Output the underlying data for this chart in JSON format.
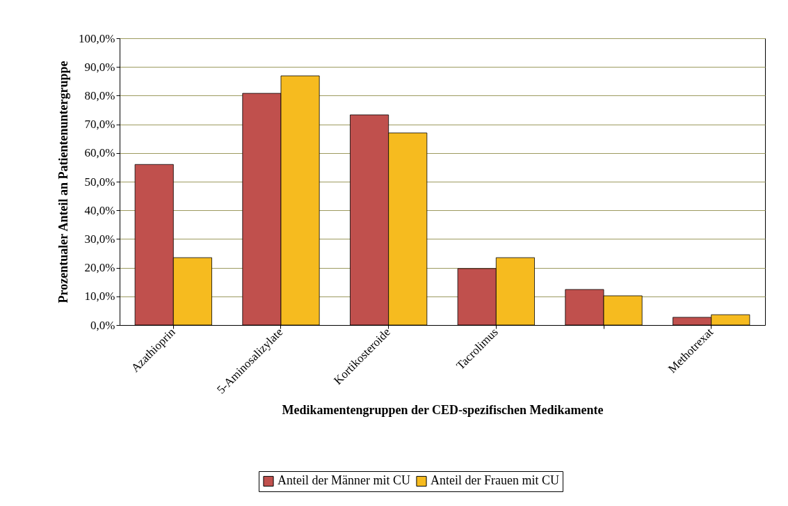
{
  "chart_data": {
    "type": "bar",
    "xlabel": "Medikamentengruppen der CED-spezifischen Medikamente",
    "ylabel": "Prozentualer Anteil an Patientenuntergruppe",
    "categories": [
      "Azathioprin",
      "5-Aminosalizylate",
      "Kortikosteroide",
      "Tacrolimus",
      null,
      "Methotrexat"
    ],
    "series": [
      {
        "name": "Anteil der Männer mit CU",
        "color": "#c0504d",
        "values": [
          56.0,
          80.8,
          73.3,
          19.7,
          12.4,
          2.7
        ]
      },
      {
        "name": "Anteil der Frauen mit CU",
        "color": "#f6bb1f",
        "values": [
          23.5,
          86.9,
          67.0,
          23.5,
          10.2,
          3.6
        ]
      }
    ],
    "ylim": [
      0,
      100
    ],
    "yticks": [
      {
        "value": 0,
        "label": "0,0%"
      },
      {
        "value": 10,
        "label": "10,0%"
      },
      {
        "value": 20,
        "label": "20,0%"
      },
      {
        "value": 30,
        "label": "30,0%"
      },
      {
        "value": 40,
        "label": "40,0%"
      },
      {
        "value": 50,
        "label": "50,0%"
      },
      {
        "value": 60,
        "label": "60,0%"
      },
      {
        "value": 70,
        "label": "70,0%"
      },
      {
        "value": 80,
        "label": "80,0%"
      },
      {
        "value": 90,
        "label": "90,0%"
      },
      {
        "value": 100,
        "label": "100,0%"
      }
    ],
    "grid": "y",
    "legend": "bottom"
  }
}
